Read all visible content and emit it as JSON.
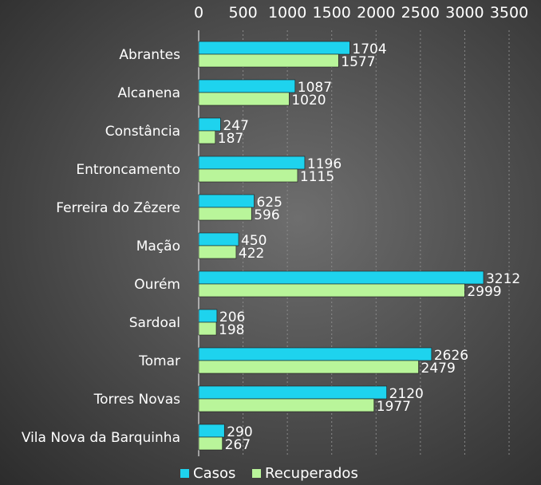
{
  "chart_data": {
    "type": "bar",
    "orientation": "horizontal",
    "title": "",
    "xlabel": "",
    "ylabel": "",
    "xlim": [
      0,
      3500
    ],
    "x_ticks": [
      0,
      500,
      1000,
      1500,
      2000,
      2500,
      3000,
      3500
    ],
    "x_tick_labels": [
      "0",
      "500",
      "1000",
      "1500",
      "2000",
      "2500",
      "3000",
      "3500"
    ],
    "x_axis_position": "top",
    "grid": true,
    "legend_position": "bottom",
    "categories": [
      "Abrantes",
      "Alcanena",
      "Constância",
      "Entroncamento",
      "Ferreira do Zêzere",
      "Mação",
      "Ourém",
      "Sardoal",
      "Tomar",
      "Torres Novas",
      "Vila Nova da Barquinha"
    ],
    "series": [
      {
        "name": "Casos",
        "color": "#1ed3ee",
        "values": [
          1704,
          1087,
          247,
          1196,
          625,
          450,
          3212,
          206,
          2626,
          2120,
          290
        ]
      },
      {
        "name": "Recuperados",
        "color": "#b9f59a",
        "values": [
          1577,
          1020,
          187,
          1115,
          596,
          422,
          2999,
          198,
          2479,
          1977,
          267
        ]
      }
    ]
  }
}
